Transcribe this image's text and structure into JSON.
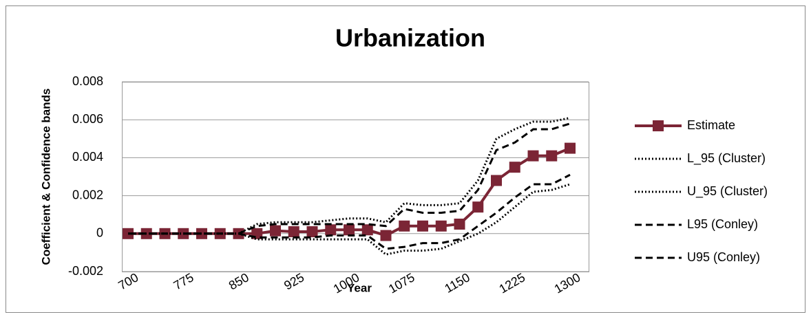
{
  "chart_data": {
    "type": "line",
    "title": "Urbanization",
    "x_label": "Year",
    "y_label": "Coefficient & Confidence bands",
    "x": [
      700,
      725,
      750,
      775,
      800,
      825,
      850,
      875,
      900,
      925,
      950,
      975,
      1000,
      1025,
      1050,
      1075,
      1100,
      1125,
      1150,
      1175,
      1200,
      1225,
      1250,
      1275,
      1300
    ],
    "xlim": [
      700,
      1300
    ],
    "xticks": [
      700,
      775,
      850,
      925,
      1000,
      1075,
      1150,
      1225,
      1300
    ],
    "ylim": [
      -0.002,
      0.008
    ],
    "yticks": [
      -0.002,
      0,
      0.002,
      0.004,
      0.006,
      0.008
    ],
    "grid": true,
    "legend": "right",
    "series": [
      {
        "name": "Estimate",
        "color": "#7b2535",
        "style": "solid",
        "marker": "square",
        "values": [
          0,
          0,
          0,
          0,
          0,
          0,
          0,
          0,
          0.00015,
          0.0001,
          0.0001,
          0.0002,
          0.0002,
          0.0002,
          -0.0001,
          0.0004,
          0.0004,
          0.0004,
          0.0005,
          0.0014,
          0.0028,
          0.0035,
          0.0041,
          0.0041,
          0.0045
        ]
      },
      {
        "name": "L_95 (Cluster)",
        "color": "#000000",
        "style": "dotted",
        "values": [
          0,
          0,
          0,
          0,
          0,
          0,
          0,
          -0.0003,
          -0.0003,
          -0.0003,
          -0.0003,
          -0.0003,
          -0.0003,
          -0.0003,
          -0.0011,
          -0.0009,
          -0.0009,
          -0.0008,
          -0.0004,
          0.0,
          0.0006,
          0.0014,
          0.0022,
          0.0023,
          0.0026
        ]
      },
      {
        "name": "U_95 (Cluster)",
        "color": "#000000",
        "style": "dotted",
        "values": [
          0,
          0,
          0,
          0,
          0,
          0,
          0,
          0.0005,
          0.0006,
          0.0006,
          0.0006,
          0.0007,
          0.0008,
          0.0008,
          0.0006,
          0.0016,
          0.0015,
          0.0015,
          0.0016,
          0.0028,
          0.005,
          0.0055,
          0.0059,
          0.0059,
          0.0061
        ]
      },
      {
        "name": "L95 (Conley)",
        "color": "#000000",
        "style": "dashed",
        "values": [
          0,
          0,
          0,
          0,
          0,
          0,
          0,
          -0.0002,
          -0.0002,
          -0.0002,
          -0.0002,
          -0.0001,
          -0.0001,
          -0.0001,
          -0.0008,
          -0.0007,
          -0.0005,
          -0.0005,
          -0.0003,
          0.0004,
          0.0011,
          0.0019,
          0.0026,
          0.0026,
          0.0031
        ]
      },
      {
        "name": "U95 (Conley)",
        "color": "#000000",
        "style": "dashed",
        "values": [
          0,
          0,
          0,
          0,
          0,
          0,
          0,
          0.0004,
          0.0005,
          0.0005,
          0.0005,
          0.0005,
          0.0005,
          0.0005,
          0.0004,
          0.0013,
          0.0011,
          0.0011,
          0.0012,
          0.0023,
          0.0044,
          0.0048,
          0.0055,
          0.0055,
          0.0058
        ]
      }
    ]
  }
}
